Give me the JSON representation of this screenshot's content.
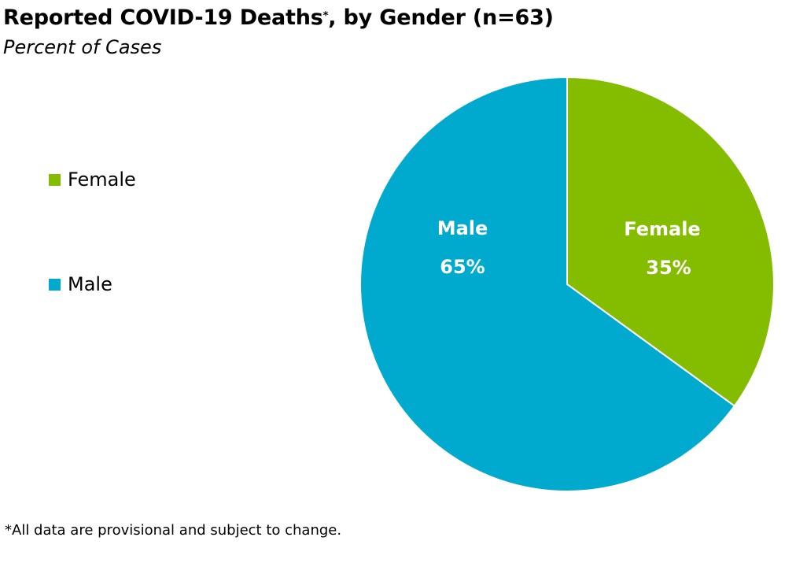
{
  "chart_data": {
    "type": "pie",
    "title": "Reported COVID-19 Deaths",
    "title_marker": "*",
    "title_suffix": ", by Gender (n=63)",
    "subtitle": "Percent of Cases",
    "categories": [
      "Female",
      "Male"
    ],
    "values": [
      35,
      65
    ],
    "value_labels": [
      "35%",
      "65%"
    ],
    "colors": [
      "#84bd00",
      "#00a9ce"
    ],
    "legend": {
      "placement": "left",
      "entries": [
        "Female",
        "Male"
      ]
    },
    "footnote": "*All data are provisional and subject to change."
  }
}
